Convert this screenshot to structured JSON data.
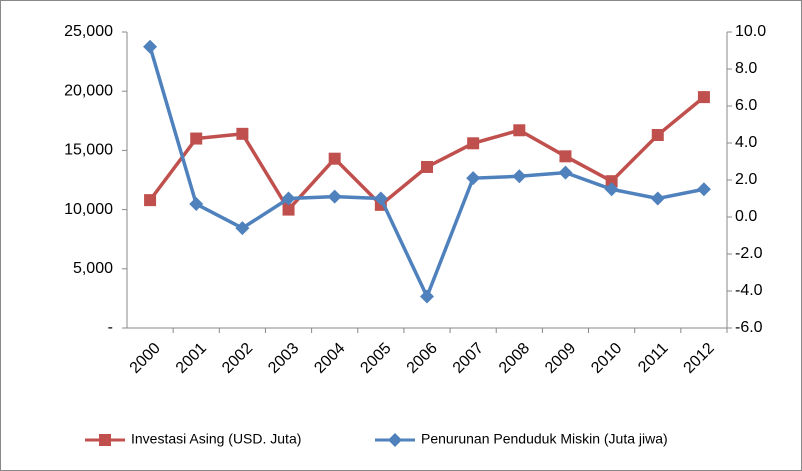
{
  "chart_data": {
    "type": "line",
    "categories": [
      "2000",
      "2001",
      "2002",
      "2003",
      "2004",
      "2005",
      "2006",
      "2007",
      "2008",
      "2009",
      "2010",
      "2011",
      "2012"
    ],
    "series": [
      {
        "name": "Investasi Asing (USD. Juta)",
        "color": "#c0504d",
        "marker": "square",
        "values": [
          10800,
          16000,
          16400,
          10000,
          14300,
          10400,
          13600,
          15600,
          16700,
          14500,
          12400,
          16300,
          19500
        ]
      },
      {
        "name": "Penurunan Penduduk Miskin (Juta jiwa)",
        "color": "#4f81bd",
        "marker": "diamond",
        "axis": "y2",
        "values": [
          9.2,
          0.7,
          -0.6,
          1.0,
          1.1,
          1.0,
          -4.3,
          2.1,
          2.2,
          2.4,
          1.5,
          1.0,
          1.5
        ]
      }
    ],
    "ylim": [
      0,
      25000
    ],
    "yticks": [
      {
        "value": 0,
        "label": "-"
      },
      {
        "value": 5000,
        "label": "5,000"
      },
      {
        "value": 10000,
        "label": "10,000"
      },
      {
        "value": 15000,
        "label": "15,000"
      },
      {
        "value": 20000,
        "label": "20,000"
      },
      {
        "value": 25000,
        "label": "25,000"
      }
    ],
    "y2lim": [
      -6,
      10
    ],
    "y2ticks": [
      {
        "value": -6,
        "label": "-6.0"
      },
      {
        "value": -4,
        "label": "-4.0"
      },
      {
        "value": -2,
        "label": "-2.0"
      },
      {
        "value": 0,
        "label": "0.0"
      },
      {
        "value": 2,
        "label": "2.0"
      },
      {
        "value": 4,
        "label": "4.0"
      },
      {
        "value": 6,
        "label": "6.0"
      },
      {
        "value": 8,
        "label": "8.0"
      },
      {
        "value": 10,
        "label": "10.0"
      }
    ],
    "legend": "bottom"
  }
}
